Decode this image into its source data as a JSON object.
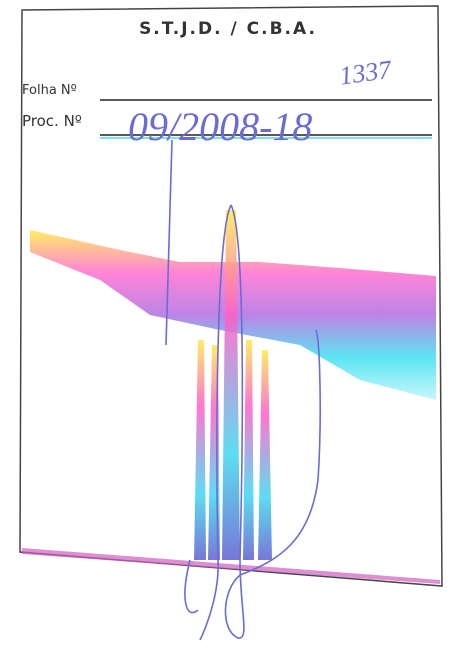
{
  "stamp": {
    "title": "S.T.J.D. / C.B.A.",
    "folha_label": "Folha Nº",
    "folha_value": "1337",
    "proc_label": "Proc. Nº",
    "proc_value": "09/2008-18"
  }
}
